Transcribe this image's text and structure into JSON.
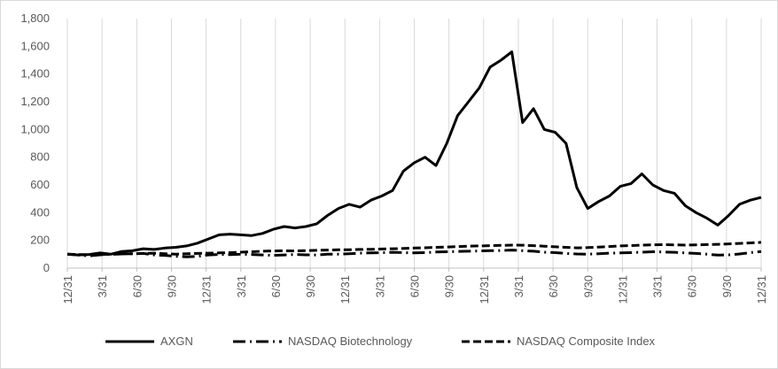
{
  "chart_data": {
    "type": "line",
    "title": "",
    "xlabel": "",
    "ylabel": "",
    "ylim": [
      0,
      1800
    ],
    "yticks": [
      0,
      200,
      400,
      600,
      800,
      1000,
      1200,
      1400,
      1600,
      1800
    ],
    "ytick_labels": [
      "0",
      "200",
      "400",
      "600",
      "800",
      "1,000",
      "1,200",
      "1,400",
      "1,600",
      "1,800"
    ],
    "xtick_labels": [
      "12/31",
      "3/31",
      "6/30",
      "9/30",
      "12/31",
      "3/31",
      "6/30",
      "9/30",
      "12/31",
      "3/31",
      "6/30",
      "9/30",
      "12/31",
      "3/31",
      "6/30",
      "9/30",
      "12/31",
      "3/31",
      "6/30",
      "9/30",
      "12/31"
    ],
    "grid": "vertical",
    "legend_position": "bottom",
    "series": [
      {
        "name": "AXGN",
        "style": "solid",
        "color": "#000000",
        "values": [
          100,
          95,
          98,
          110,
          100,
          120,
          125,
          140,
          135,
          145,
          150,
          160,
          180,
          210,
          240,
          245,
          240,
          235,
          250,
          280,
          300,
          290,
          300,
          320,
          380,
          430,
          460,
          440,
          490,
          520,
          560,
          700,
          760,
          800,
          740,
          900,
          1100,
          1200,
          1300,
          1450,
          1500,
          1560,
          1050,
          1150,
          1000,
          980,
          900,
          580,
          430,
          480,
          520,
          590,
          610,
          680,
          600,
          560,
          540,
          450,
          400,
          360,
          310,
          380,
          460,
          490,
          510
        ]
      },
      {
        "name": "NASDAQ Biotechnology",
        "style": "dash-dot",
        "color": "#000000",
        "values": [
          100,
          95,
          88,
          96,
          100,
          102,
          104,
          106,
          95,
          92,
          85,
          82,
          85,
          95,
          98,
          97,
          100,
          98,
          95,
          92,
          95,
          98,
          96,
          95,
          100,
          101,
          104,
          108,
          110,
          112,
          114,
          112,
          110,
          112,
          116,
          118,
          120,
          122,
          124,
          126,
          127,
          130,
          126,
          122,
          115,
          112,
          106,
          102,
          100,
          104,
          108,
          110,
          112,
          115,
          118,
          116,
          114,
          110,
          106,
          100,
          94,
          96,
          102,
          112,
          120
        ]
      },
      {
        "name": "NASDAQ Composite Index",
        "style": "dashed",
        "color": "#000000",
        "values": [
          100,
          98,
          96,
          98,
          100,
          102,
          104,
          106,
          108,
          104,
          100,
          104,
          106,
          108,
          110,
          112,
          115,
          118,
          122,
          124,
          126,
          124,
          126,
          128,
          130,
          132,
          133,
          135,
          136,
          138,
          140,
          142,
          145,
          147,
          150,
          152,
          155,
          158,
          160,
          162,
          164,
          166,
          165,
          162,
          158,
          154,
          150,
          146,
          148,
          152,
          156,
          160,
          163,
          166,
          168,
          169,
          168,
          166,
          168,
          170,
          172,
          175,
          178,
          182,
          186
        ]
      }
    ]
  }
}
